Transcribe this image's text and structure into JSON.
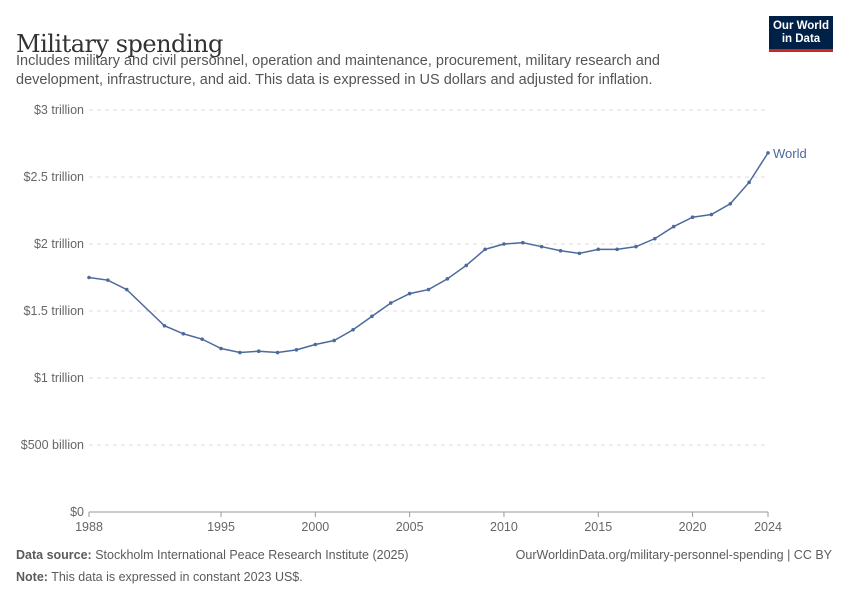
{
  "title": "Military spending",
  "subtitle": "Includes military and civil personnel, operation and maintenance, procurement, military research and development, infrastructure, and aid. This data is expressed in US dollars and adjusted for inflation.",
  "logo": {
    "line1": "Our World",
    "line2": "in Data"
  },
  "footer": {
    "source_label": "Data source:",
    "source": "Stockholm International Peace Research Institute (2025)",
    "note_label": "Note:",
    "note": "This data is expressed in constant 2023 US$.",
    "url": "OurWorldinData.org/military-personnel-spending | CC BY"
  },
  "chart_data": {
    "type": "line",
    "title": "Military spending",
    "xlabel": "",
    "ylabel": "",
    "ylim": [
      0,
      3000000000000
    ],
    "xlim": [
      1988,
      2024
    ],
    "grid": "horizontal dashed",
    "yticks": [
      {
        "v": 0,
        "label": "$0"
      },
      {
        "v": 500000000000,
        "label": "$500 billion"
      },
      {
        "v": 1000000000000,
        "label": "$1 trillion"
      },
      {
        "v": 1500000000000,
        "label": "$1.5 trillion"
      },
      {
        "v": 2000000000000,
        "label": "$2 trillion"
      },
      {
        "v": 2500000000000,
        "label": "$2.5 trillion"
      },
      {
        "v": 3000000000000,
        "label": "$3 trillion"
      }
    ],
    "xticks": [
      1988,
      1995,
      2000,
      2005,
      2010,
      2015,
      2020,
      2024
    ],
    "color": "#4c6a9c",
    "series": [
      {
        "name": "World",
        "x": [
          1988,
          1989,
          1990,
          1992,
          1993,
          1994,
          1995,
          1996,
          1997,
          1998,
          1999,
          2000,
          2001,
          2002,
          2003,
          2004,
          2005,
          2006,
          2007,
          2008,
          2009,
          2010,
          2011,
          2012,
          2013,
          2014,
          2015,
          2016,
          2017,
          2018,
          2019,
          2020,
          2021,
          2022,
          2023,
          2024
        ],
        "y": [
          1750000000000.0,
          1730000000000.0,
          1660000000000.0,
          1390000000000.0,
          1330000000000.0,
          1290000000000.0,
          1220000000000.0,
          1190000000000.0,
          1200000000000.0,
          1190000000000.0,
          1210000000000.0,
          1250000000000.0,
          1280000000000.0,
          1360000000000.0,
          1460000000000.0,
          1560000000000.0,
          1630000000000.0,
          1660000000000.0,
          1740000000000.0,
          1840000000000.0,
          1960000000000.0,
          2000000000000.0,
          2010000000000.0,
          1980000000000.0,
          1950000000000.0,
          1930000000000.0,
          1960000000000.0,
          1960000000000.0,
          1980000000000.0,
          2040000000000.0,
          2130000000000.0,
          2200000000000.0,
          2220000000000.0,
          2300000000000.0,
          2460000000000.0,
          2680000000000.0
        ]
      }
    ]
  }
}
